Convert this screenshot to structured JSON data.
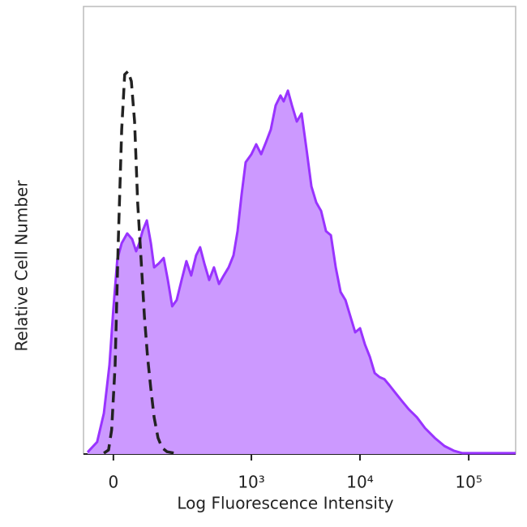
{
  "chart_data": {
    "type": "area",
    "x_label": "Log Fluorescence Intensity",
    "y_label": "Relative Cell Number",
    "xscale": "biexponential",
    "xlim": [
      -73,
      270000
    ],
    "ylim": [
      0,
      100
    ],
    "xticks": [
      0,
      {
        "value": 1000,
        "label": "10³"
      },
      {
        "value": 10000,
        "label": "10⁴"
      },
      {
        "value": 100000,
        "label": "10⁵"
      }
    ],
    "series": [
      {
        "color": "#9933ff",
        "fill": "#cc99ff",
        "line_style": "solid",
        "x": [
          -62,
          -38,
          -22,
          -9,
          0,
          9,
          19,
          32,
          44,
          54,
          62,
          71,
          83,
          95,
          105,
          121,
          138,
          154,
          172,
          192,
          216,
          242,
          270,
          302,
          330,
          362,
          403,
          448,
          499,
          554,
          615,
          683,
          744,
          812,
          886,
          1000,
          1109,
          1230,
          1365,
          1512,
          1675,
          1858,
          1987,
          2171,
          2365,
          2624,
          2905,
          3229,
          3575,
          3964,
          4396,
          4871,
          5400,
          5983,
          6631,
          7355,
          8154,
          9040,
          10012,
          11100,
          12320,
          13650,
          15140,
          16780,
          18600,
          21280,
          24400,
          28080,
          33370,
          39640,
          48700,
          59830,
          73500,
          87370,
          103800,
          146600,
          270000
        ],
        "values": [
          0.4,
          2.7,
          9.1,
          19.9,
          32.6,
          43.5,
          47.1,
          49.3,
          48.0,
          45.3,
          47.1,
          49.8,
          52.2,
          47.1,
          41.7,
          42.6,
          43.8,
          38.9,
          33.0,
          34.4,
          38.9,
          43.1,
          39.9,
          44.4,
          46.2,
          42.6,
          38.9,
          41.7,
          38.0,
          39.9,
          41.7,
          44.4,
          49.8,
          58.0,
          65.2,
          67.0,
          69.2,
          67.0,
          69.7,
          72.5,
          77.9,
          80.1,
          78.8,
          81.2,
          77.9,
          74.3,
          76.1,
          67.9,
          59.8,
          56.2,
          54.3,
          49.8,
          48.9,
          41.7,
          36.2,
          34.4,
          30.8,
          27.2,
          28.1,
          24.5,
          21.7,
          18.1,
          17.2,
          16.7,
          15.4,
          13.6,
          11.8,
          10.0,
          8.2,
          5.8,
          3.6,
          1.8,
          0.7,
          0.2,
          0.2,
          0.2,
          0.2
        ]
      },
      {
        "color": "#222222",
        "line_style": "dashed",
        "x": [
          -22,
          -11,
          -4,
          4,
          11,
          19,
          26,
          34,
          42,
          50,
          58,
          67,
          76,
          85,
          95,
          105,
          118,
          132,
          151,
          181
        ],
        "values": [
          0.2,
          0.9,
          5.4,
          19.9,
          47.1,
          72.5,
          84.8,
          85.5,
          83.3,
          74.3,
          56.2,
          43.5,
          30.8,
          21.7,
          14.5,
          8.2,
          3.6,
          1.4,
          0.5,
          0.2
        ]
      }
    ]
  }
}
